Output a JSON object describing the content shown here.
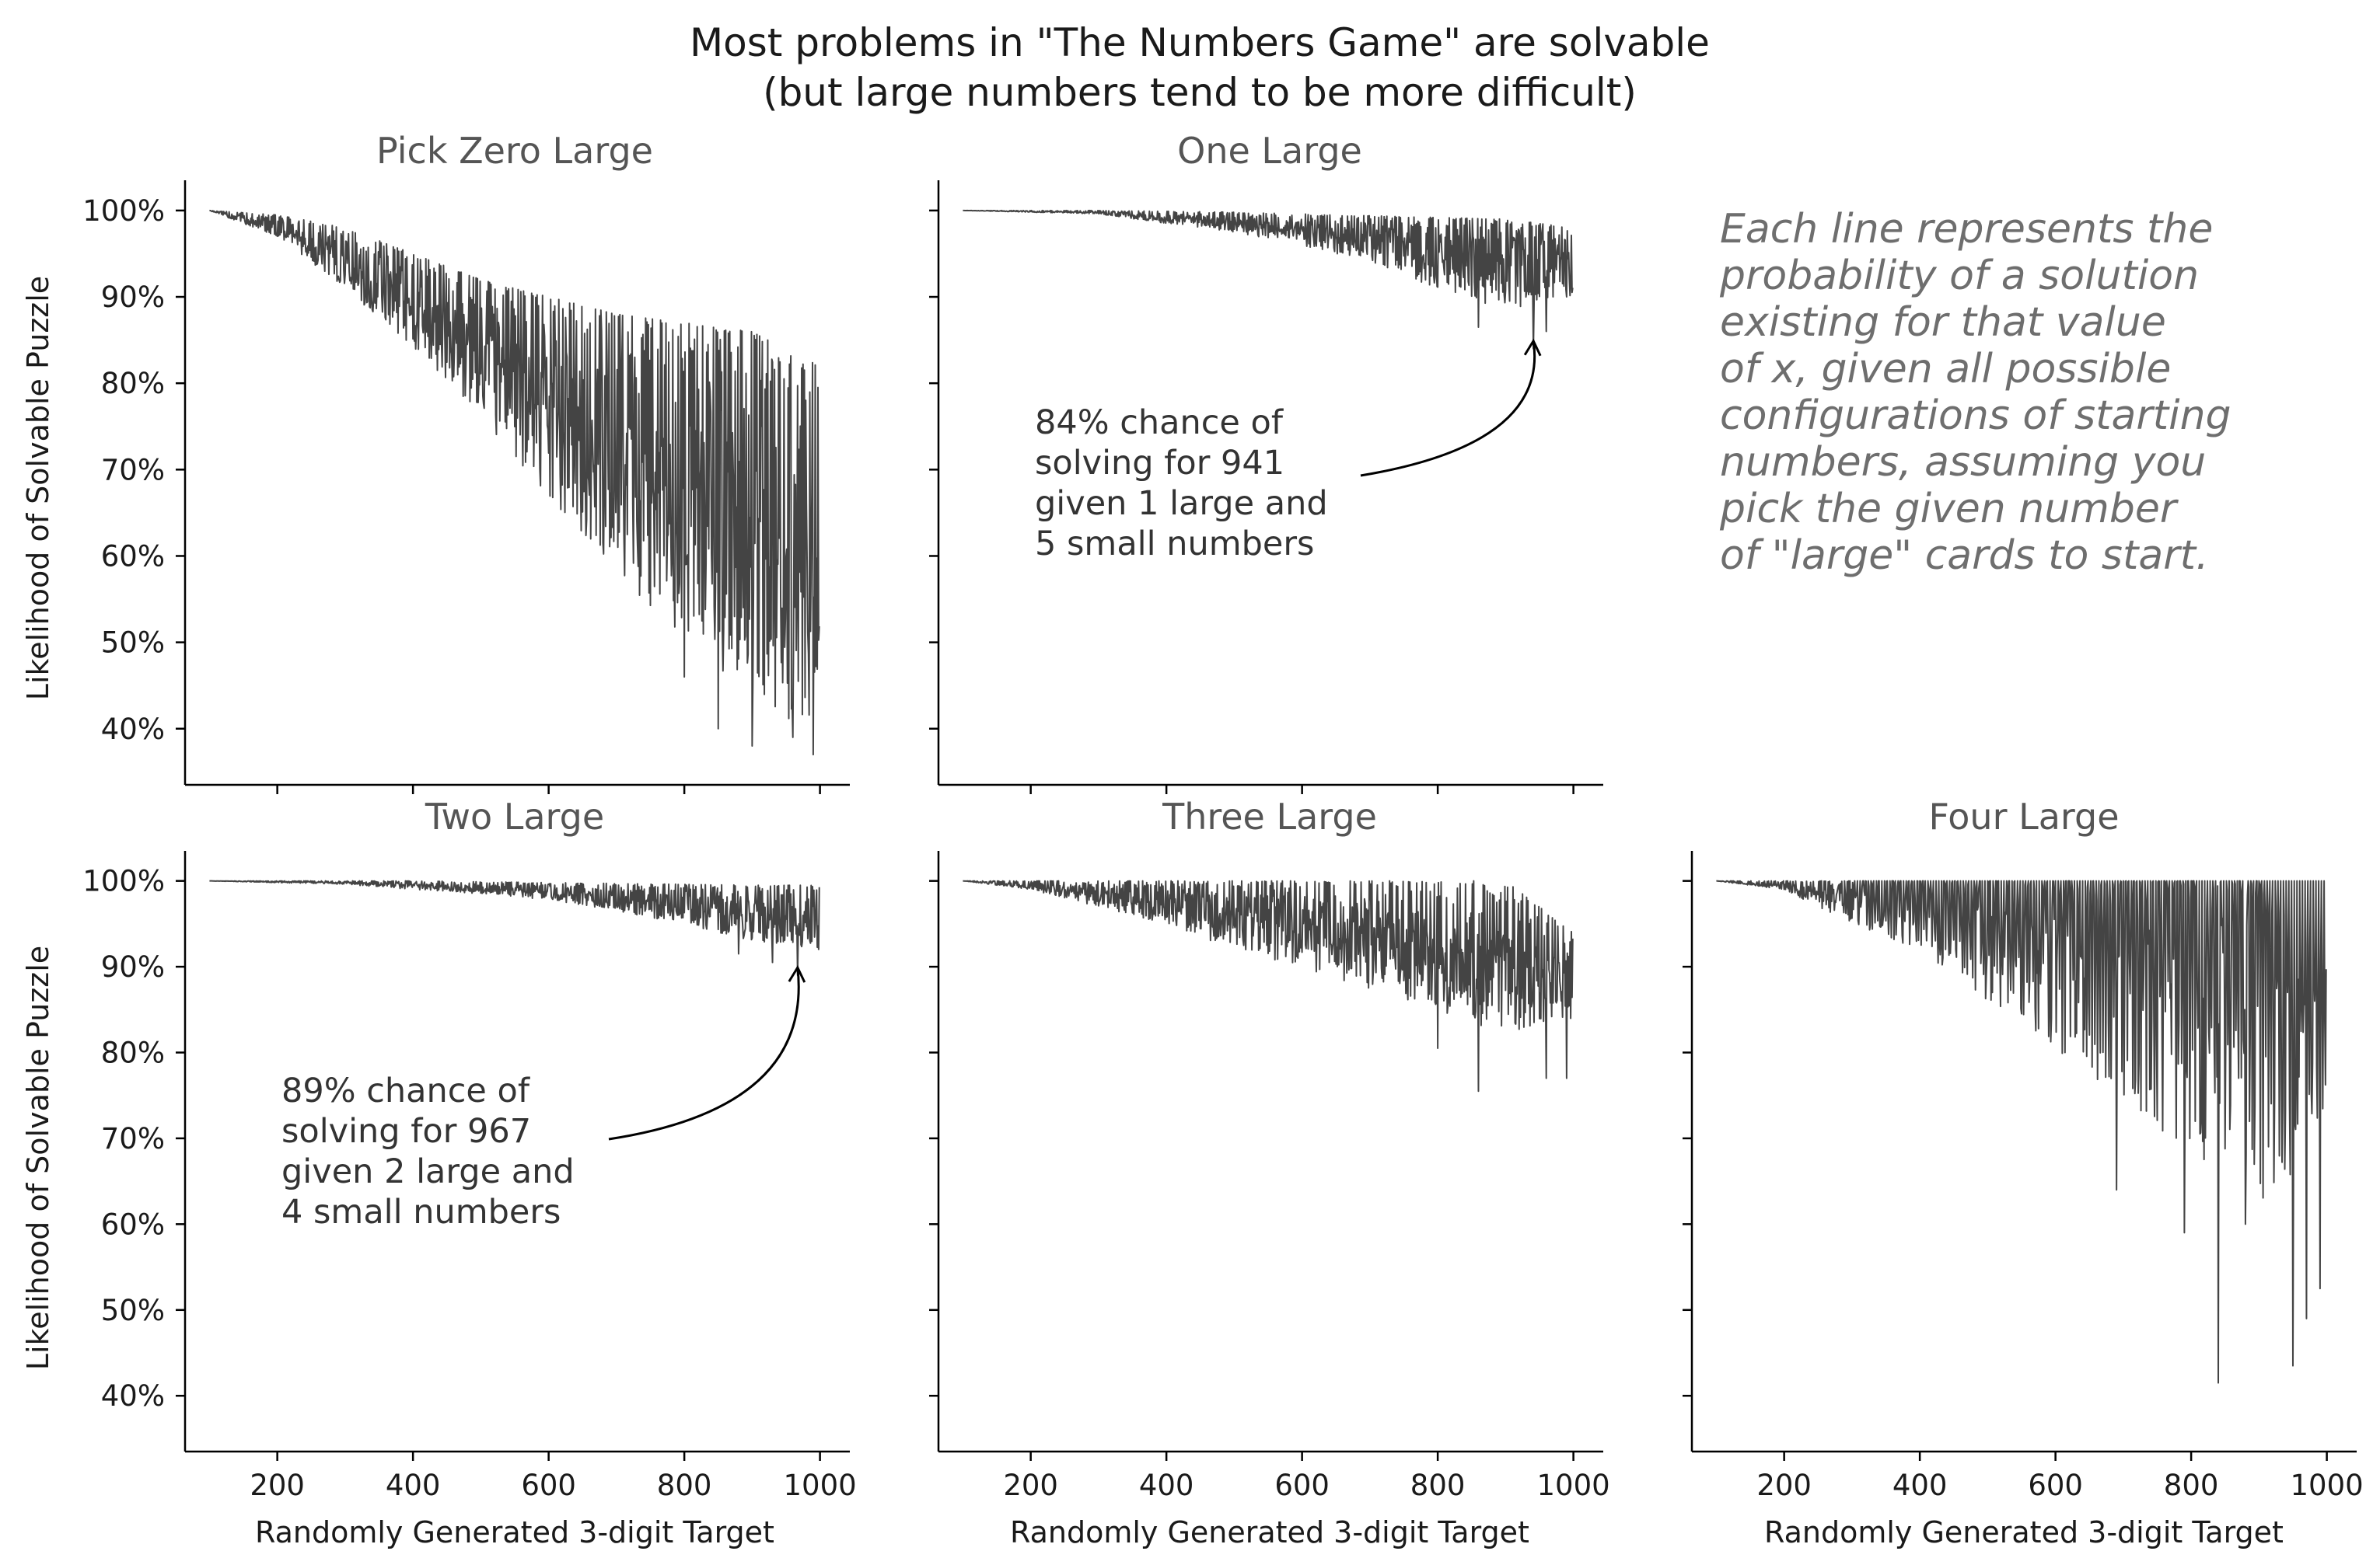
{
  "chart_data": {
    "type": "line",
    "title_lines": [
      "Most problems in \"The Numbers Game\" are solvable",
      "(but large numbers tend to be more difficult)"
    ],
    "ylabel": "Likelihood of Solvable Puzzle",
    "xlabel": "Randomly Generated 3-digit Target",
    "xlim": [
      64,
      1044
    ],
    "ylim": [
      33.5,
      103.5
    ],
    "x_ticks": [
      200,
      400,
      600,
      800,
      1000
    ],
    "y_ticks": [
      40,
      50,
      60,
      70,
      80,
      90,
      100
    ],
    "x_tick_labels": [
      "200",
      "400",
      "600",
      "800",
      "1000"
    ],
    "y_tick_labels": [
      "40%",
      "50%",
      "60%",
      "70%",
      "80%",
      "90%",
      "100%"
    ],
    "line_color": "#444444",
    "series_x_range": [
      100,
      999
    ],
    "note_lines": [
      "Each line represents the",
      "probability of a solution",
      "existing for that value",
      "of x, given all possible",
      "configurations of starting",
      "numbers, assuming you",
      "pick the given number",
      "of \"large\" cards to start."
    ],
    "panels": [
      {
        "id": "zero",
        "title": "Pick Zero Large",
        "envelope": [
          [
            100,
            100,
            100
          ],
          [
            200,
            99.5,
            97
          ],
          [
            300,
            98,
            91
          ],
          [
            400,
            95,
            84
          ],
          [
            500,
            92,
            76
          ],
          [
            600,
            90,
            67
          ],
          [
            700,
            88,
            58
          ],
          [
            800,
            87,
            50
          ],
          [
            900,
            86,
            43
          ],
          [
            999,
            82,
            39
          ]
        ],
        "spikes": [
          [
            800,
            46
          ],
          [
            850,
            40
          ],
          [
            900,
            38
          ],
          [
            960,
            39
          ],
          [
            990,
            37
          ]
        ]
      },
      {
        "id": "one",
        "title": "One Large",
        "envelope": [
          [
            100,
            100,
            100
          ],
          [
            300,
            100,
            99.6
          ],
          [
            400,
            99.9,
            98.5
          ],
          [
            500,
            99.8,
            97.5
          ],
          [
            600,
            99.6,
            96
          ],
          [
            700,
            99.4,
            94
          ],
          [
            800,
            99.2,
            91
          ],
          [
            900,
            99,
            88.5
          ],
          [
            999,
            98,
            90
          ]
        ],
        "spikes": [
          [
            860,
            86.5
          ],
          [
            941,
            84
          ],
          [
            960,
            86
          ],
          [
            990,
            90
          ]
        ],
        "annotation": {
          "lines": [
            "84% chance of",
            "solving for 941",
            "given 1 large and",
            "5 small numbers"
          ],
          "point": [
            941,
            84
          ]
        }
      },
      {
        "id": "two",
        "title": "Two Large",
        "envelope": [
          [
            100,
            100,
            100
          ],
          [
            300,
            100,
            99.6
          ],
          [
            400,
            100,
            99
          ],
          [
            500,
            99.9,
            98.5
          ],
          [
            600,
            99.8,
            97.8
          ],
          [
            700,
            99.7,
            96.5
          ],
          [
            800,
            99.6,
            95
          ],
          [
            900,
            99.5,
            93
          ],
          [
            999,
            99.5,
            92
          ]
        ],
        "spikes": [
          [
            967,
            89
          ],
          [
            930,
            90.5
          ],
          [
            880,
            91.5
          ]
        ],
        "annotation": {
          "lines": [
            "89% chance of",
            "solving for 967",
            "given 2 large and",
            "4 small numbers"
          ],
          "point": [
            967,
            89
          ]
        }
      },
      {
        "id": "three",
        "title": "Three Large",
        "envelope": [
          [
            100,
            100,
            100
          ],
          [
            200,
            100,
            99
          ],
          [
            300,
            100,
            97
          ],
          [
            400,
            100,
            95
          ],
          [
            500,
            100,
            92
          ],
          [
            600,
            100,
            90
          ],
          [
            700,
            100,
            87
          ],
          [
            800,
            100,
            85
          ],
          [
            900,
            100,
            82
          ],
          [
            999,
            94,
            84
          ]
        ],
        "spikes": [
          [
            860,
            75.5
          ],
          [
            800,
            80.5
          ],
          [
            960,
            77
          ],
          [
            990,
            77
          ]
        ]
      },
      {
        "id": "four",
        "title": "Four Large",
        "envelope": [
          [
            100,
            100,
            100
          ],
          [
            200,
            100,
            99
          ],
          [
            300,
            100,
            95
          ],
          [
            400,
            100,
            92
          ],
          [
            500,
            100,
            86
          ],
          [
            600,
            100,
            80
          ],
          [
            700,
            100,
            74
          ],
          [
            800,
            100,
            68
          ],
          [
            900,
            100,
            62
          ],
          [
            999,
            90,
            70
          ]
        ],
        "spikes": [
          [
            840,
            41.5
          ],
          [
            950,
            43.5
          ],
          [
            970,
            49
          ],
          [
            990,
            52.5
          ],
          [
            690,
            64
          ],
          [
            790,
            59
          ],
          [
            880,
            60
          ]
        ]
      }
    ]
  }
}
